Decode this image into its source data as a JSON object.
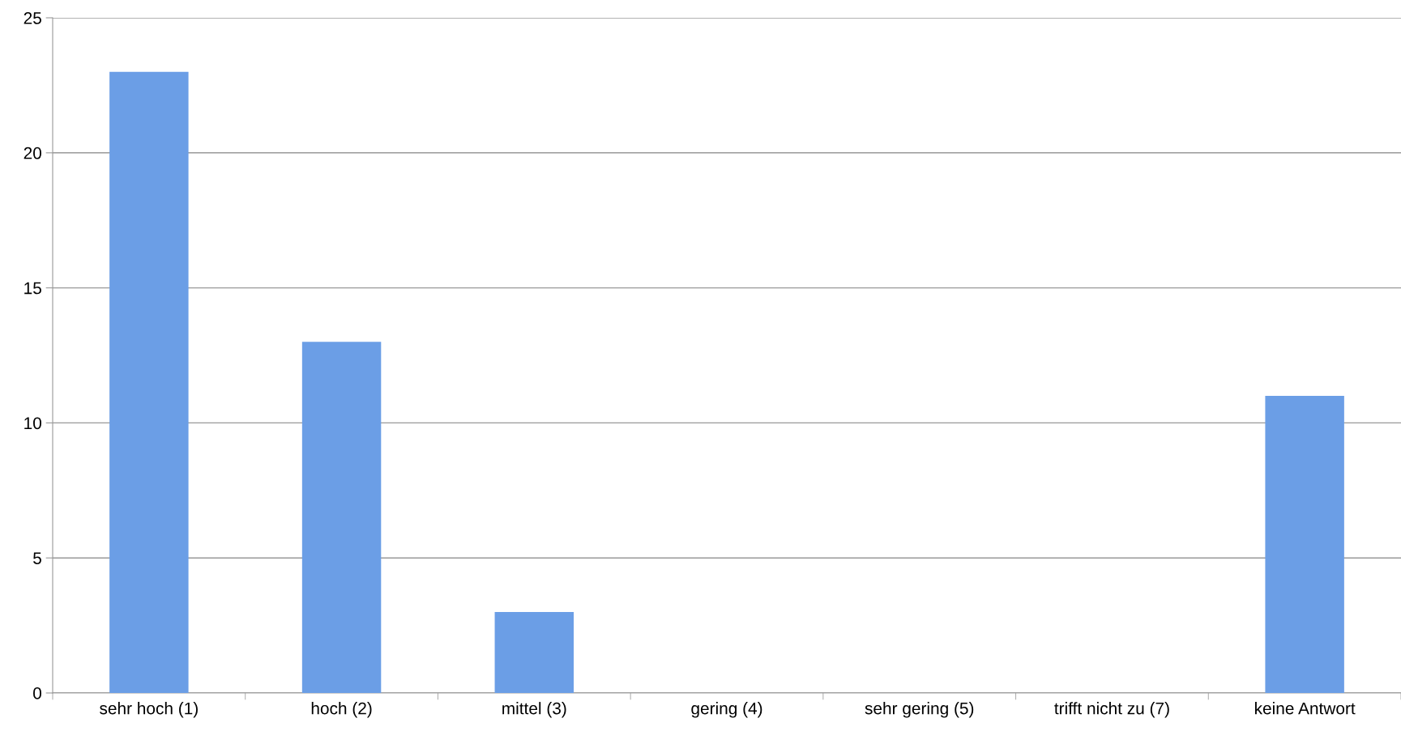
{
  "chart_data": {
    "type": "bar",
    "categories": [
      "sehr hoch (1)",
      "hoch (2)",
      "mittel (3)",
      "gering (4)",
      "sehr gering (5)",
      "trifft nicht zu (7)",
      "keine Antwort"
    ],
    "values": [
      23,
      13,
      3,
      0,
      0,
      0,
      11
    ],
    "color": "#6b9ee6",
    "ylim": [
      0,
      25
    ],
    "yticks": [
      0,
      5,
      10,
      15,
      20,
      25
    ],
    "grid": "y",
    "legend": false
  }
}
